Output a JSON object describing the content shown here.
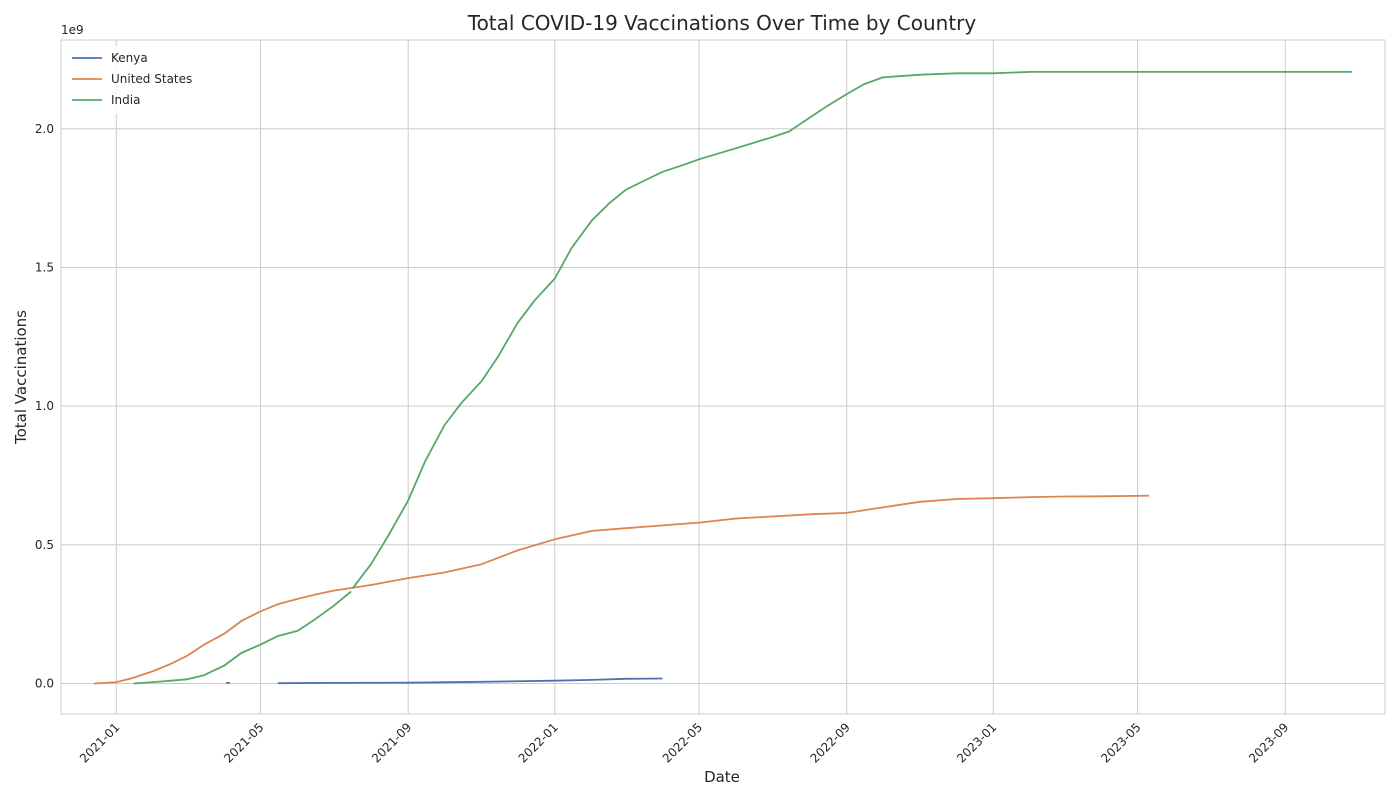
{
  "chart_data": {
    "type": "line",
    "title": "Total COVID-19 Vaccinations Over Time by Country",
    "xlabel": "Date",
    "ylabel": "Total Vaccinations",
    "y_offset_label": "1e9",
    "y_scale_factor": 1000000000,
    "xlim": [
      "2020-11-16",
      "2023-11-23"
    ],
    "ylim": [
      -0.11,
      2.32
    ],
    "x_ticks": [
      "2021-01",
      "2021-05",
      "2021-09",
      "2022-01",
      "2022-05",
      "2022-09",
      "2023-01",
      "2023-05",
      "2023-09"
    ],
    "y_ticks": [
      0.0,
      0.5,
      1.0,
      1.5,
      2.0
    ],
    "y_tick_labels": [
      "0.0",
      "0.5",
      "1.0",
      "1.5",
      "2.0"
    ],
    "grid": true,
    "legend_position": "top-left",
    "series": [
      {
        "name": "Kenya",
        "color": "#4c72b0",
        "segments": [
          [
            [
              "2021-04-03",
              0.002
            ],
            [
              "2021-04-05",
              0.002
            ]
          ],
          [
            [
              "2021-05-16",
              0.001
            ],
            [
              "2021-07-01",
              0.002
            ],
            [
              "2021-09-01",
              0.003
            ],
            [
              "2021-11-01",
              0.006
            ],
            [
              "2022-01-01",
              0.01
            ],
            [
              "2022-02-01",
              0.013
            ],
            [
              "2022-03-01",
              0.017
            ],
            [
              "2022-03-31",
              0.018
            ]
          ]
        ]
      },
      {
        "name": "United States",
        "color": "#dd8452",
        "segments": [
          [
            [
              "2020-12-14",
              0.0
            ],
            [
              "2021-01-01",
              0.005
            ],
            [
              "2021-01-15",
              0.02
            ],
            [
              "2021-02-01",
              0.045
            ],
            [
              "2021-02-15",
              0.07
            ],
            [
              "2021-03-01",
              0.1
            ],
            [
              "2021-03-15",
              0.14
            ],
            [
              "2021-04-01",
              0.18
            ],
            [
              "2021-04-15",
              0.225
            ],
            [
              "2021-05-01",
              0.26
            ],
            [
              "2021-05-15",
              0.285
            ],
            [
              "2021-06-01",
              0.305
            ],
            [
              "2021-06-15",
              0.32
            ],
            [
              "2021-07-01",
              0.335
            ],
            [
              "2021-08-01",
              0.355
            ],
            [
              "2021-09-01",
              0.38
            ],
            [
              "2021-10-01",
              0.4
            ],
            [
              "2021-11-01",
              0.43
            ],
            [
              "2021-12-01",
              0.48
            ],
            [
              "2022-01-01",
              0.52
            ],
            [
              "2022-02-01",
              0.55
            ],
            [
              "2022-03-01",
              0.56
            ],
            [
              "2022-04-01",
              0.57
            ],
            [
              "2022-05-01",
              0.58
            ],
            [
              "2022-06-01",
              0.595
            ],
            [
              "2022-07-01",
              0.602
            ],
            [
              "2022-08-01",
              0.61
            ],
            [
              "2022-09-01",
              0.615
            ],
            [
              "2022-10-01",
              0.635
            ],
            [
              "2022-11-01",
              0.655
            ],
            [
              "2022-12-01",
              0.665
            ],
            [
              "2023-01-01",
              0.668
            ],
            [
              "2023-02-01",
              0.672
            ],
            [
              "2023-03-01",
              0.674
            ],
            [
              "2023-04-01",
              0.675
            ],
            [
              "2023-05-10",
              0.677
            ]
          ]
        ]
      },
      {
        "name": "India",
        "color": "#55a868",
        "segments": [
          [
            [
              "2021-01-16",
              0.0
            ],
            [
              "2021-02-01",
              0.005
            ],
            [
              "2021-03-01",
              0.015
            ],
            [
              "2021-03-15",
              0.03
            ],
            [
              "2021-04-01",
              0.065
            ],
            [
              "2021-04-15",
              0.11
            ],
            [
              "2021-05-01",
              0.14
            ],
            [
              "2021-05-15",
              0.17
            ],
            [
              "2021-06-01",
              0.19
            ],
            [
              "2021-06-15",
              0.23
            ],
            [
              "2021-07-01",
              0.28
            ],
            [
              "2021-07-15",
              0.33
            ]
          ],
          [
            [
              "2021-07-17",
              0.345
            ],
            [
              "2021-08-01",
              0.43
            ],
            [
              "2021-08-15",
              0.53
            ],
            [
              "2021-09-01",
              0.66
            ],
            [
              "2021-09-15",
              0.8
            ],
            [
              "2021-10-01",
              0.93
            ],
            [
              "2021-10-15",
              1.01
            ],
            [
              "2021-11-01",
              1.09
            ],
            [
              "2021-11-15",
              1.18
            ],
            [
              "2021-12-01",
              1.3
            ],
            [
              "2021-12-15",
              1.38
            ],
            [
              "2022-01-01",
              1.46
            ],
            [
              "2022-01-15",
              1.57
            ],
            [
              "2022-02-01",
              1.67
            ],
            [
              "2022-02-15",
              1.73
            ],
            [
              "2022-03-01",
              1.78
            ],
            [
              "2022-03-15",
              1.81
            ],
            [
              "2022-04-01",
              1.845
            ],
            [
              "2022-04-15",
              1.865
            ],
            [
              "2022-05-01",
              1.89
            ],
            [
              "2022-06-01",
              1.93
            ],
            [
              "2022-07-01",
              1.97
            ],
            [
              "2022-07-15",
              1.99
            ],
            [
              "2022-08-01",
              2.04
            ],
            [
              "2022-08-15",
              2.08
            ],
            [
              "2022-09-01",
              2.125
            ],
            [
              "2022-09-15",
              2.16
            ],
            [
              "2022-10-01",
              2.185
            ],
            [
              "2022-11-01",
              2.195
            ],
            [
              "2022-12-01",
              2.2
            ],
            [
              "2023-01-01",
              2.2
            ],
            [
              "2023-02-01",
              2.205
            ],
            [
              "2023-03-01",
              2.205
            ],
            [
              "2023-06-01",
              2.205
            ],
            [
              "2023-09-01",
              2.205
            ],
            [
              "2023-10-26",
              2.205
            ]
          ]
        ]
      }
    ]
  }
}
